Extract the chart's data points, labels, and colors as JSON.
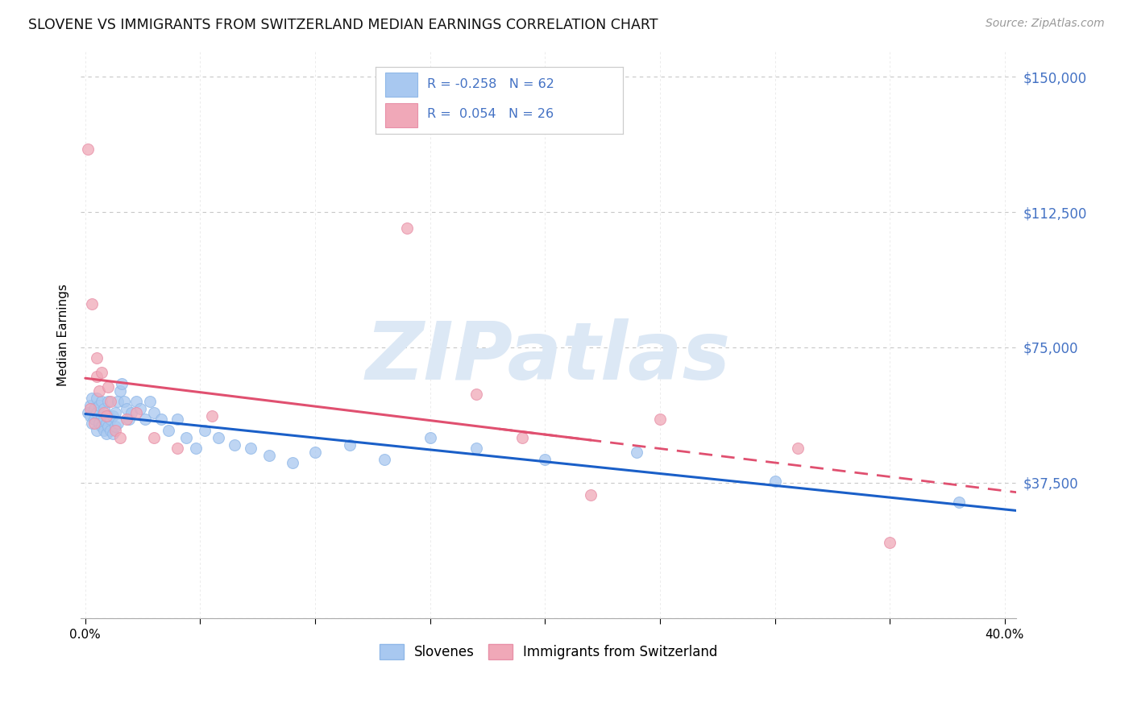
{
  "title": "SLOVENE VS IMMIGRANTS FROM SWITZERLAND MEDIAN EARNINGS CORRELATION CHART",
  "source": "Source: ZipAtlas.com",
  "ylabel": "Median Earnings",
  "xlim": [
    -0.002,
    0.405
  ],
  "ylim": [
    0,
    157000
  ],
  "yticks": [
    0,
    37500,
    75000,
    112500,
    150000
  ],
  "ytick_labels": [
    "",
    "$37,500",
    "$75,000",
    "$112,500",
    "$150,000"
  ],
  "xticks": [
    0.0,
    0.05,
    0.1,
    0.15,
    0.2,
    0.25,
    0.3,
    0.35,
    0.4
  ],
  "xtick_labels": [
    "0.0%",
    "",
    "",
    "",
    "",
    "",
    "",
    "",
    "40.0%"
  ],
  "blue_color": "#a8c8f0",
  "pink_color": "#f0a8b8",
  "blue_line_color": "#1a5fc8",
  "pink_line_color": "#e05070",
  "background_color": "#ffffff",
  "grid_color": "#c8c8c8",
  "watermark": "ZIPatlas",
  "watermark_color": "#dce8f5",
  "legend_R_blue": "-0.258",
  "legend_N_blue": "62",
  "legend_R_pink": "0.054",
  "legend_N_pink": "26",
  "blue_R": -0.258,
  "pink_R": 0.054,
  "slovene_x": [
    0.001,
    0.002,
    0.002,
    0.003,
    0.003,
    0.004,
    0.004,
    0.005,
    0.005,
    0.005,
    0.006,
    0.006,
    0.007,
    0.007,
    0.007,
    0.008,
    0.008,
    0.008,
    0.009,
    0.009,
    0.01,
    0.01,
    0.01,
    0.011,
    0.011,
    0.012,
    0.012,
    0.013,
    0.013,
    0.014,
    0.014,
    0.015,
    0.016,
    0.017,
    0.018,
    0.019,
    0.02,
    0.022,
    0.024,
    0.026,
    0.028,
    0.03,
    0.033,
    0.036,
    0.04,
    0.044,
    0.048,
    0.052,
    0.058,
    0.065,
    0.072,
    0.08,
    0.09,
    0.1,
    0.115,
    0.13,
    0.15,
    0.17,
    0.2,
    0.24,
    0.3,
    0.38
  ],
  "slovene_y": [
    57000,
    56000,
    59000,
    54000,
    61000,
    55000,
    58000,
    52000,
    57000,
    61000,
    54000,
    59000,
    53000,
    56000,
    60000,
    52000,
    55000,
    58000,
    51000,
    54000,
    53000,
    56000,
    60000,
    52000,
    55000,
    51000,
    56000,
    53000,
    57000,
    54000,
    60000,
    63000,
    65000,
    60000,
    58000,
    55000,
    57000,
    60000,
    58000,
    55000,
    60000,
    57000,
    55000,
    52000,
    55000,
    50000,
    47000,
    52000,
    50000,
    48000,
    47000,
    45000,
    43000,
    46000,
    48000,
    44000,
    50000,
    47000,
    44000,
    46000,
    38000,
    32000
  ],
  "swiss_x": [
    0.001,
    0.002,
    0.003,
    0.004,
    0.005,
    0.005,
    0.006,
    0.007,
    0.008,
    0.009,
    0.01,
    0.011,
    0.013,
    0.015,
    0.018,
    0.022,
    0.03,
    0.04,
    0.055,
    0.14,
    0.17,
    0.19,
    0.22,
    0.25,
    0.31,
    0.35
  ],
  "swiss_y": [
    130000,
    58000,
    87000,
    54000,
    67000,
    72000,
    63000,
    68000,
    57000,
    56000,
    64000,
    60000,
    52000,
    50000,
    55000,
    57000,
    50000,
    47000,
    56000,
    108000,
    62000,
    50000,
    34000,
    55000,
    47000,
    21000
  ]
}
